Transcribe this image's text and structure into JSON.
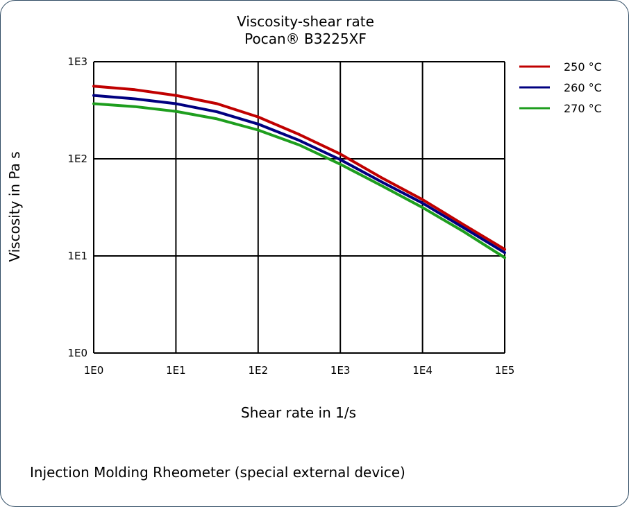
{
  "footnote": "Injection Molding Rheometer (special external device)",
  "chart_data": {
    "type": "line",
    "title": "Viscosity-shear rate",
    "subtitle": "Pocan® B3225XF",
    "xlabel": "Shear rate in 1/s",
    "ylabel": "Viscosity in Pa s",
    "x_scale": "log",
    "y_scale": "log",
    "xlim": [
      1,
      100000
    ],
    "ylim": [
      1,
      1000
    ],
    "x_ticks": [
      {
        "value": 1,
        "label": "1E0"
      },
      {
        "value": 10,
        "label": "1E1"
      },
      {
        "value": 100,
        "label": "1E2"
      },
      {
        "value": 1000,
        "label": "1E3"
      },
      {
        "value": 10000,
        "label": "1E4"
      },
      {
        "value": 100000,
        "label": "1E5"
      }
    ],
    "y_ticks": [
      {
        "value": 1,
        "label": "1E0"
      },
      {
        "value": 10,
        "label": "1E1"
      },
      {
        "value": 100,
        "label": "1E2"
      },
      {
        "value": 1000,
        "label": "1E3"
      }
    ],
    "grid": true,
    "legend_position": "right",
    "series": [
      {
        "name": "250 °C",
        "color": "#c00000",
        "x": [
          1,
          3.16,
          10,
          31.6,
          100,
          316,
          1000,
          3160,
          10000,
          31600,
          100000
        ],
        "y": [
          560,
          515,
          450,
          370,
          270,
          178,
          112,
          64,
          38,
          21,
          11.7
        ]
      },
      {
        "name": "260 °C",
        "color": "#000080",
        "x": [
          1,
          3.16,
          10,
          31.6,
          100,
          316,
          1000,
          3160,
          10000,
          31600,
          100000
        ],
        "y": [
          450,
          415,
          370,
          305,
          228,
          155,
          98,
          58,
          35,
          19.5,
          10.8
        ]
      },
      {
        "name": "270 °C",
        "color": "#1e9e1e",
        "x": [
          1,
          3.16,
          10,
          31.6,
          100,
          316,
          1000,
          3160,
          10000,
          31600,
          100000
        ],
        "y": [
          370,
          345,
          308,
          258,
          198,
          139,
          88,
          53,
          31.5,
          17.8,
          9.6
        ]
      }
    ]
  }
}
